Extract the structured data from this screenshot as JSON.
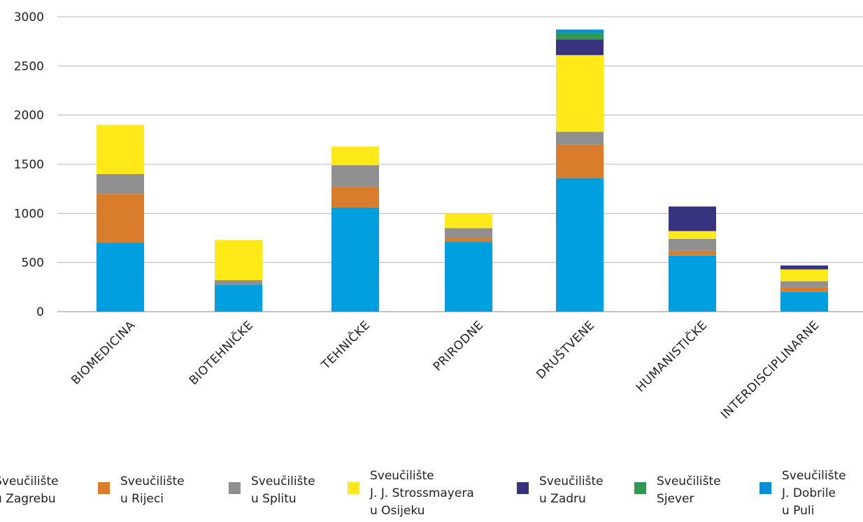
{
  "chart_data": {
    "type": "bar",
    "stacked": true,
    "title": "",
    "xlabel": "",
    "ylabel": "",
    "ylim": [
      0,
      3000
    ],
    "yticks": [
      0,
      500,
      1000,
      1500,
      2000,
      2500,
      3000
    ],
    "grid": true,
    "legend_position": "bottom",
    "categories": [
      "BIOMEDICINA",
      "BIOTEHNIČKE",
      "TEHNIČKE",
      "PRIRODNE",
      "DRUŠTVENE",
      "HUMANISTIČKE",
      "INTERDISCIPLINARNE"
    ],
    "series": [
      {
        "name": "Sveučilište u Zagrebu",
        "legend_lines": [
          "Sveučilište",
          "u Zagrebu"
        ],
        "color": "#00a0e0",
        "values": [
          700,
          270,
          1060,
          710,
          1360,
          570,
          200
        ]
      },
      {
        "name": "Sveučilište u Rijeci",
        "legend_lines": [
          "Sveučilište",
          "u Rijeci"
        ],
        "color": "#d97c2b",
        "values": [
          500,
          0,
          210,
          40,
          340,
          50,
          50
        ]
      },
      {
        "name": "Sveučilište u Splitu",
        "legend_lines": [
          "Sveučilište",
          "u Splitu"
        ],
        "color": "#8f8f8f",
        "values": [
          200,
          50,
          220,
          100,
          130,
          120,
          60
        ]
      },
      {
        "name": "Sveučilište J. J. Strossmayera u Osijeku",
        "legend_lines": [
          "Sveučilište",
          "J. J. Strossmayera",
          "u Osijeku"
        ],
        "color": "#ffe919",
        "values": [
          500,
          410,
          190,
          150,
          780,
          80,
          120
        ]
      },
      {
        "name": "Sveučilište u Zadru",
        "legend_lines": [
          "Sveučilište",
          "u Zadru"
        ],
        "color": "#37337f",
        "values": [
          0,
          0,
          0,
          0,
          160,
          250,
          40
        ]
      },
      {
        "name": "Sveučilište Sjever",
        "legend_lines": [
          "Sveučilište",
          "Sjever"
        ],
        "color": "#2e9a50",
        "values": [
          0,
          0,
          0,
          0,
          60,
          0,
          0
        ]
      },
      {
        "name": "Sveučilište J. Dobrile u Puli",
        "legend_lines": [
          "Sveučilište",
          "J. Dobrile",
          "u Puli"
        ],
        "color": "#0a8fd6",
        "values": [
          0,
          0,
          0,
          0,
          40,
          0,
          0
        ]
      }
    ]
  }
}
